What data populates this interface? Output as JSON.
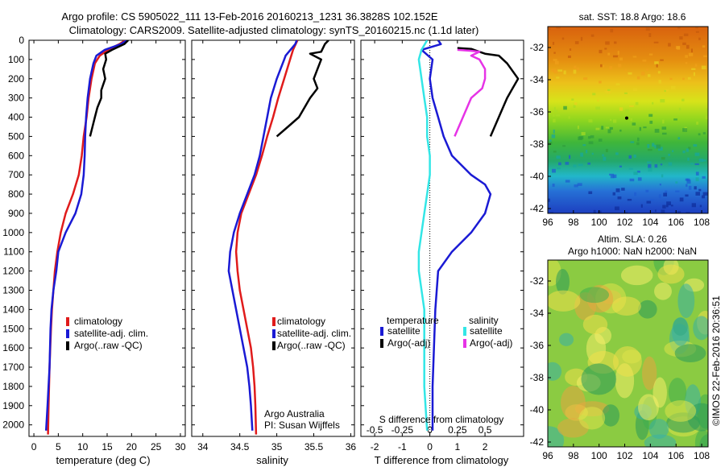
{
  "header": {
    "title_line1": "Argo profile: CS 5905022_111 13-Feb-2016 20160213_1231 36.3828S 102.152E",
    "title_line2": "Climatology: CARS2009. Satellite-adjusted climatology: synTS_20160215.nc (1.1d later)"
  },
  "colors": {
    "climatology": "#e01b1b",
    "satellite": "#1a1ad4",
    "argo": "#000000",
    "sat_salinity": "#33e6e6",
    "argo_salinity": "#e633e6"
  },
  "chart_data": [
    {
      "type": "line",
      "name": "temperature-profile",
      "xlabel": "temperature (deg C)",
      "ylabel": "",
      "xlim": [
        -1,
        31
      ],
      "ylim": [
        2060,
        0
      ],
      "xticks": [
        "0",
        "5",
        "10",
        "15",
        "20",
        "25",
        "30"
      ],
      "yticks": [
        "0",
        "100",
        "200",
        "300",
        "400",
        "500",
        "600",
        "700",
        "800",
        "900",
        "1000",
        "1100",
        "1200",
        "1300",
        "1400",
        "1500",
        "1600",
        "1700",
        "1800",
        "1900",
        "2000"
      ],
      "legend": [
        "climatology",
        "satellite-adj. clim.",
        "Argo(..raw -QC)"
      ],
      "legend_position": "bottom-center",
      "series": [
        {
          "name": "climatology",
          "color": "#e01b1b",
          "points": [
            [
              18.7,
              0
            ],
            [
              17.5,
              20
            ],
            [
              15.2,
              50
            ],
            [
              13.5,
              80
            ],
            [
              12.5,
              120
            ],
            [
              11.8,
              200
            ],
            [
              11.2,
              300
            ],
            [
              10.8,
              400
            ],
            [
              10.2,
              500
            ],
            [
              9.8,
              600
            ],
            [
              9.2,
              700
            ],
            [
              8.0,
              800
            ],
            [
              6.5,
              900
            ],
            [
              5.5,
              1000
            ],
            [
              4.8,
              1100
            ],
            [
              4.3,
              1200
            ],
            [
              4.0,
              1300
            ],
            [
              3.7,
              1400
            ],
            [
              3.5,
              1500
            ],
            [
              3.2,
              1700
            ],
            [
              3.0,
              1900
            ],
            [
              2.9,
              2050
            ]
          ]
        },
        {
          "name": "satellite-adj. clim.",
          "color": "#1a1ad4",
          "points": [
            [
              19.0,
              0
            ],
            [
              17.8,
              20
            ],
            [
              14.5,
              50
            ],
            [
              12.8,
              80
            ],
            [
              12.2,
              120
            ],
            [
              11.5,
              200
            ],
            [
              11.0,
              300
            ],
            [
              10.7,
              400
            ],
            [
              10.5,
              500
            ],
            [
              10.4,
              600
            ],
            [
              10.2,
              700
            ],
            [
              9.7,
              800
            ],
            [
              8.5,
              900
            ],
            [
              6.5,
              1000
            ],
            [
              5.0,
              1100
            ],
            [
              4.6,
              1200
            ],
            [
              4.0,
              1300
            ],
            [
              3.6,
              1400
            ],
            [
              3.4,
              1500
            ],
            [
              3.2,
              1700
            ],
            [
              2.8,
              1900
            ],
            [
              2.5,
              2030
            ]
          ]
        },
        {
          "name": "Argo(..raw -QC)",
          "color": "#000000",
          "points": [
            [
              19.3,
              0
            ],
            [
              18.5,
              20
            ],
            [
              16.0,
              50
            ],
            [
              14.6,
              70
            ],
            [
              14.8,
              100
            ],
            [
              14.2,
              150
            ],
            [
              14.6,
              200
            ],
            [
              13.8,
              260
            ],
            [
              13.8,
              300
            ],
            [
              13.0,
              350
            ],
            [
              12.5,
              400
            ],
            [
              12.0,
              450
            ],
            [
              11.5,
              500
            ]
          ]
        }
      ]
    },
    {
      "type": "line",
      "name": "salinity-profile",
      "xlabel": "salinity",
      "ylabel": "",
      "xlim": [
        33.85,
        36.05
      ],
      "ylim": [
        2060,
        0
      ],
      "xticks": [
        "34",
        "34.5",
        "35",
        "35.5",
        "36"
      ],
      "legend": [
        "climatology",
        "satellite-adj. clim.",
        "Argo(..raw -QC)"
      ],
      "legend_position": "bottom-right",
      "annotation": {
        "line1": "Argo Australia",
        "line2": "PI: Susan Wijffels"
      },
      "series": [
        {
          "name": "climatology",
          "color": "#e01b1b",
          "points": [
            [
              35.28,
              0
            ],
            [
              35.22,
              50
            ],
            [
              35.18,
              100
            ],
            [
              35.1,
              200
            ],
            [
              35.02,
              300
            ],
            [
              34.95,
              400
            ],
            [
              34.87,
              500
            ],
            [
              34.8,
              600
            ],
            [
              34.72,
              700
            ],
            [
              34.62,
              800
            ],
            [
              34.52,
              900
            ],
            [
              34.47,
              1000
            ],
            [
              34.45,
              1100
            ],
            [
              34.47,
              1200
            ],
            [
              34.5,
              1300
            ],
            [
              34.55,
              1400
            ],
            [
              34.6,
              1500
            ],
            [
              34.65,
              1600
            ],
            [
              34.68,
              1700
            ],
            [
              34.7,
              1800
            ],
            [
              34.71,
              1900
            ],
            [
              34.72,
              2050
            ]
          ]
        },
        {
          "name": "satellite-adj. clim.",
          "color": "#1a1ad4",
          "points": [
            [
              35.27,
              0
            ],
            [
              35.25,
              20
            ],
            [
              35.12,
              80
            ],
            [
              35.1,
              100
            ],
            [
              35.05,
              150
            ],
            [
              35.0,
              200
            ],
            [
              34.92,
              300
            ],
            [
              34.87,
              400
            ],
            [
              34.82,
              500
            ],
            [
              34.77,
              600
            ],
            [
              34.7,
              700
            ],
            [
              34.6,
              800
            ],
            [
              34.5,
              900
            ],
            [
              34.42,
              1000
            ],
            [
              34.37,
              1100
            ],
            [
              34.35,
              1200
            ],
            [
              34.4,
              1300
            ],
            [
              34.45,
              1400
            ],
            [
              34.5,
              1500
            ],
            [
              34.55,
              1600
            ],
            [
              34.6,
              1700
            ],
            [
              34.63,
              1800
            ],
            [
              34.65,
              1900
            ],
            [
              34.67,
              2030
            ]
          ]
        },
        {
          "name": "Argo(..raw -QC)",
          "color": "#000000",
          "points": [
            [
              35.7,
              0
            ],
            [
              35.65,
              20
            ],
            [
              35.6,
              60
            ],
            [
              35.45,
              70
            ],
            [
              35.6,
              100
            ],
            [
              35.55,
              150
            ],
            [
              35.5,
              200
            ],
            [
              35.55,
              250
            ],
            [
              35.45,
              300
            ],
            [
              35.3,
              400
            ],
            [
              35.15,
              450
            ],
            [
              35.0,
              500
            ]
          ]
        }
      ]
    },
    {
      "type": "line",
      "name": "difference-profile",
      "xlabel": "T difference from climatology",
      "top_xlabel": "S difference from climatology",
      "xlim": [
        -2.5,
        3.4
      ],
      "ylim": [
        2060,
        0
      ],
      "xticks": [
        "-2",
        "-1",
        "0",
        "1",
        "2"
      ],
      "top_xticks": [
        "-0.5",
        "-0.25",
        "0",
        "0.25",
        "0.5"
      ],
      "zero_line": "dotted",
      "legend_groups": [
        {
          "heading": "temperature",
          "items": [
            "satellite",
            "Argo(-adj)"
          ]
        },
        {
          "heading": "salinity",
          "items": [
            "satellite",
            "Argo(-adj)"
          ]
        }
      ],
      "series": [
        {
          "name": "temperature satellite",
          "color": "#1a1ad4",
          "points": [
            [
              0.3,
              0
            ],
            [
              0.4,
              20
            ],
            [
              -0.3,
              50
            ],
            [
              0.1,
              100
            ],
            [
              0.0,
              200
            ],
            [
              0.1,
              300
            ],
            [
              0.3,
              400
            ],
            [
              0.5,
              500
            ],
            [
              0.8,
              600
            ],
            [
              1.5,
              700
            ],
            [
              2.0,
              750
            ],
            [
              2.2,
              800
            ],
            [
              2.0,
              900
            ],
            [
              1.5,
              1000
            ],
            [
              0.8,
              1100
            ],
            [
              0.3,
              1200
            ],
            [
              0.2,
              1400
            ],
            [
              0.15,
              1600
            ],
            [
              0.1,
              1800
            ],
            [
              0.1,
              2030
            ]
          ]
        },
        {
          "name": "temperature Argo(-adj)",
          "color": "#000000",
          "points": [
            [
              1.0,
              40
            ],
            [
              1.5,
              45
            ],
            [
              1.8,
              60
            ],
            [
              2.0,
              70
            ],
            [
              2.5,
              80
            ],
            [
              2.8,
              120
            ],
            [
              3.2,
              200
            ],
            [
              3.0,
              250
            ],
            [
              2.8,
              300
            ],
            [
              2.5,
              400
            ],
            [
              2.2,
              500
            ]
          ]
        },
        {
          "name": "salinity satellite",
          "color": "#33e6e6",
          "points": [
            [
              -0.1,
              0
            ],
            [
              -0.3,
              50
            ],
            [
              -0.4,
              100
            ],
            [
              -0.3,
              200
            ],
            [
              -0.2,
              300
            ],
            [
              -0.1,
              400
            ],
            [
              -0.1,
              500
            ],
            [
              0.0,
              600
            ],
            [
              0.0,
              700
            ],
            [
              -0.1,
              800
            ],
            [
              -0.2,
              900
            ],
            [
              -0.3,
              1000
            ],
            [
              -0.4,
              1100
            ],
            [
              -0.4,
              1200
            ],
            [
              -0.3,
              1300
            ],
            [
              -0.2,
              1400
            ],
            [
              -0.2,
              1600
            ],
            [
              -0.2,
              1800
            ],
            [
              -0.1,
              2030
            ]
          ]
        },
        {
          "name": "salinity Argo(-adj)",
          "color": "#e633e6",
          "points": [
            [
              1.0,
              50
            ],
            [
              1.5,
              55
            ],
            [
              1.8,
              60
            ],
            [
              1.5,
              80
            ],
            [
              1.8,
              100
            ],
            [
              2.0,
              150
            ],
            [
              2.0,
              200
            ],
            [
              1.9,
              250
            ],
            [
              1.5,
              300
            ],
            [
              1.2,
              400
            ],
            [
              0.9,
              500
            ]
          ]
        }
      ]
    },
    {
      "type": "heatmap",
      "name": "satellite-sst-map",
      "title": "sat. SST: 18.8  Argo: 18.6",
      "xlim": [
        96,
        108.5
      ],
      "ylim": [
        -42.3,
        -30.7
      ],
      "xticks": [
        "96",
        "98",
        "100",
        "102",
        "104",
        "106",
        "108"
      ],
      "yticks": [
        "-32",
        "-34",
        "-36",
        "-38",
        "-40",
        "-42"
      ],
      "argo_position": [
        102.152,
        -36.3828
      ]
    },
    {
      "type": "heatmap",
      "name": "altimetry-sla-map",
      "title_line1": "Altim. SLA: 0.26",
      "title_line2": "Argo h1000: NaN h2000: NaN",
      "xlim": [
        96,
        108.5
      ],
      "ylim": [
        -42.3,
        -30.7
      ],
      "xticks": [
        "96",
        "98",
        "100",
        "102",
        "104",
        "106",
        "108"
      ],
      "yticks": [
        "-32",
        "-34",
        "-36",
        "-38",
        "-40",
        "-42"
      ]
    }
  ],
  "footer": {
    "credit": "©IMOS 22-Feb-2016 20:36:51"
  }
}
